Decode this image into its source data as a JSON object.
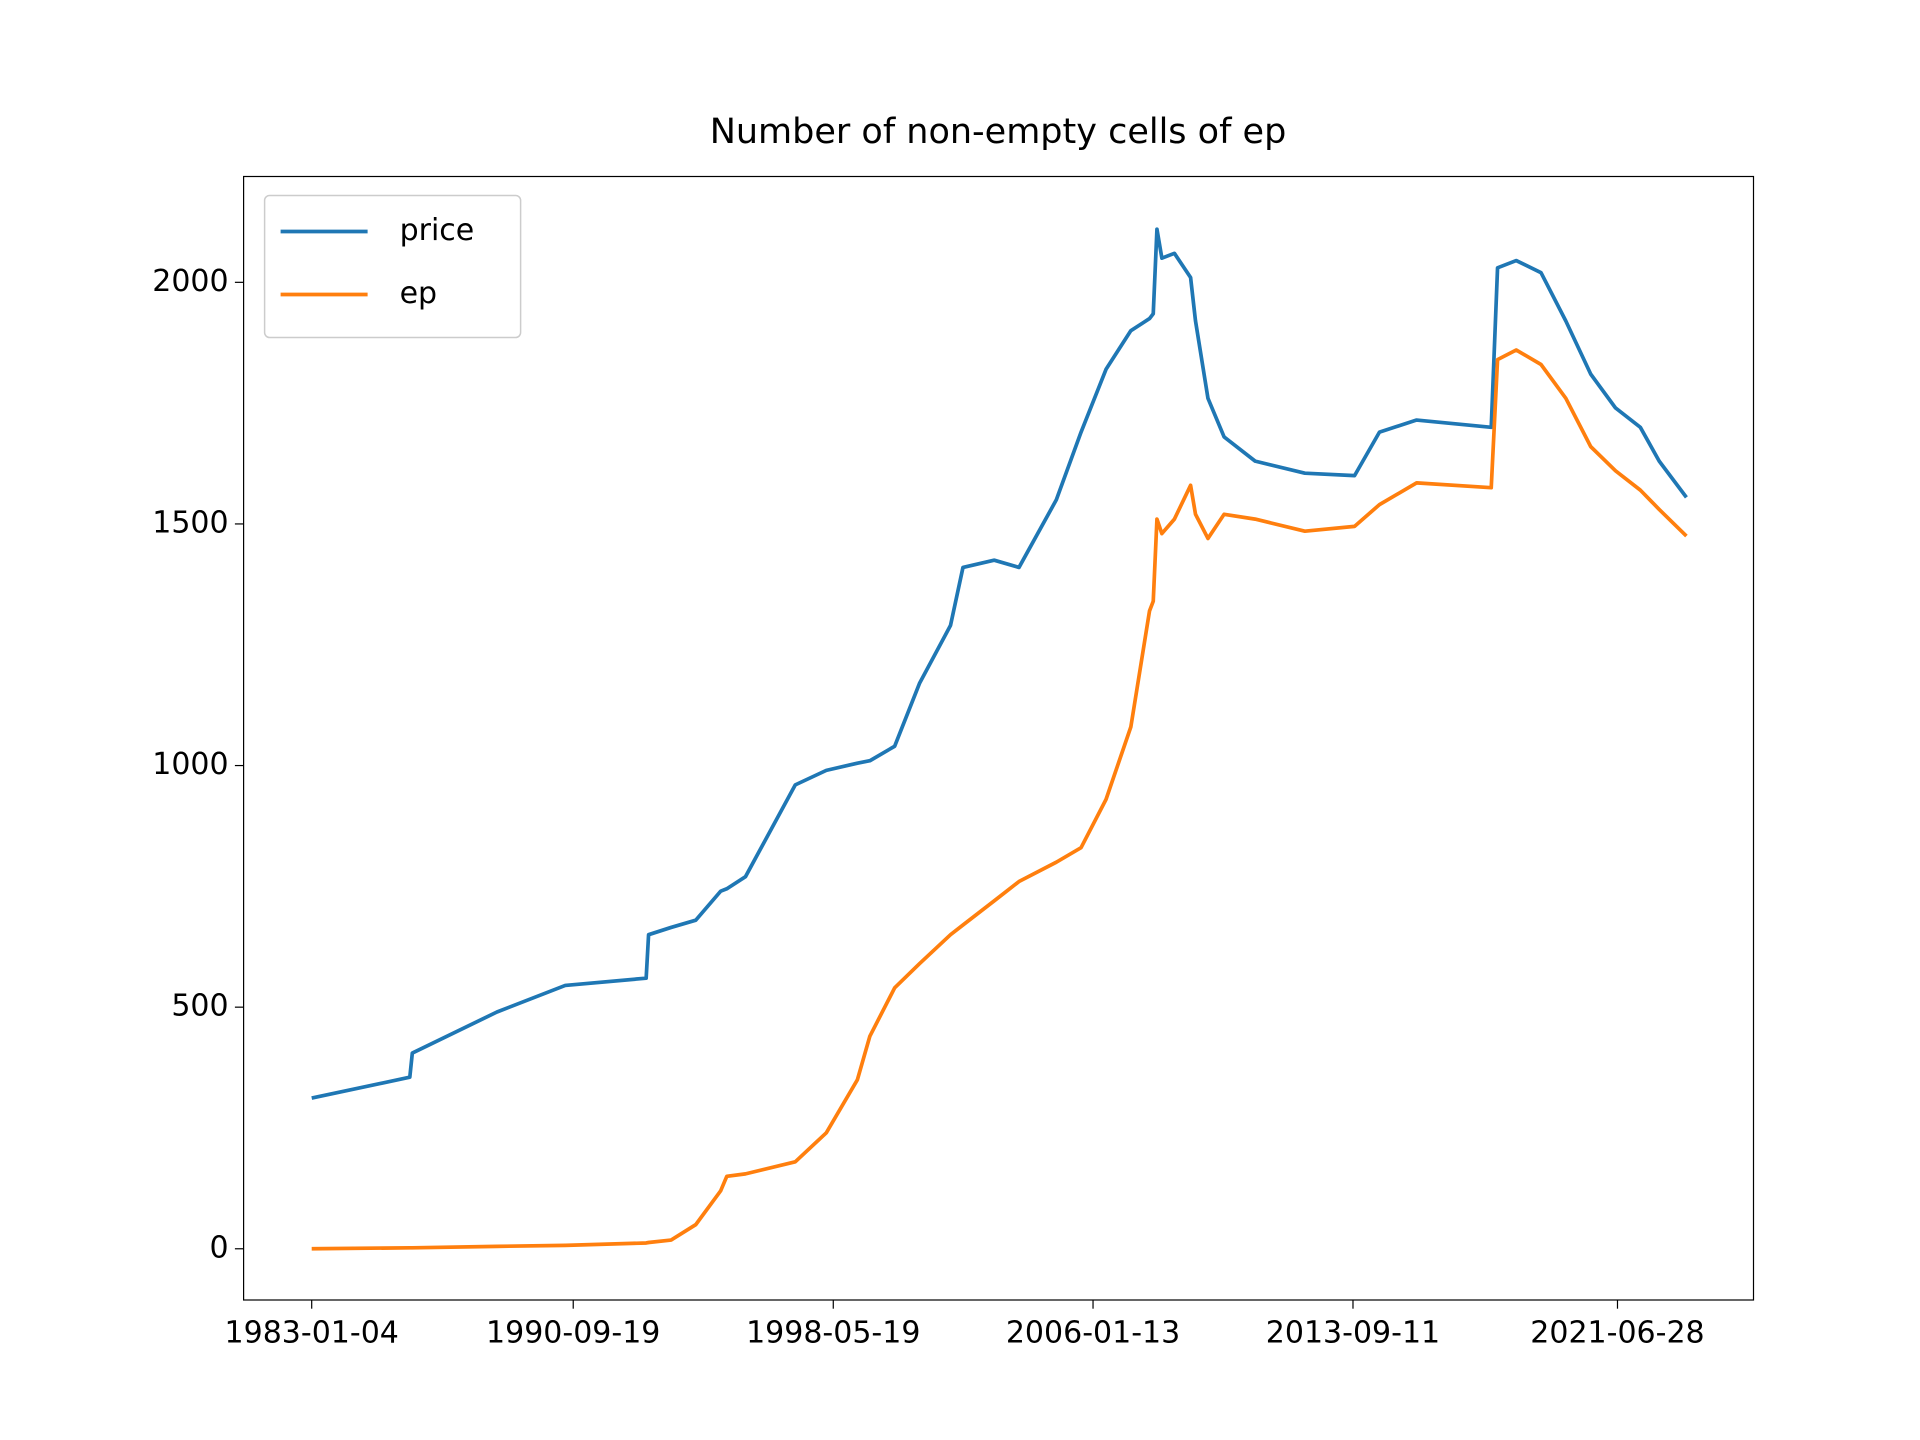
{
  "chart_data": {
    "type": "line",
    "title": "Number of non-empty cells of ep",
    "x": [
      "1983-01-04",
      "1985-11-25",
      "1985-12-22",
      "1988-06-20",
      "1990-06-25",
      "1992-11-12",
      "1992-12-08",
      "1993-08-07",
      "1994-04-30",
      "1995-01-23",
      "1995-03-30",
      "1995-10-17",
      "1997-04-05",
      "1998-03-05",
      "1999-02-03",
      "1999-06-17",
      "2000-03-10",
      "2000-12-02",
      "2001-11-01",
      "2002-03-15",
      "2003-02-14",
      "2003-11-08",
      "2004-12-14",
      "2005-09-06",
      "2006-06-02",
      "2007-02-24",
      "2007-09-13",
      "2007-10-23",
      "2007-12-02",
      "2008-01-24",
      "2008-06-07",
      "2008-11-28",
      "2009-01-20",
      "2009-06-03",
      "2009-11-24",
      "2010-10-24",
      "2012-04-11",
      "2013-09-28",
      "2014-06-23",
      "2015-07-28",
      "2017-10-08",
      "2017-12-15",
      "2018-07-04",
      "2019-03-28",
      "2019-12-20",
      "2020-09-13",
      "2021-06-07",
      "2022-03-01",
      "2022-09-20",
      "2023-07-10"
    ],
    "series": [
      {
        "name": "price",
        "color": "#1f77b4",
        "values": [
          312,
          355,
          405,
          490,
          545,
          560,
          650,
          665,
          680,
          740,
          745,
          770,
          960,
          990,
          1005,
          1010,
          1040,
          1170,
          1290,
          1410,
          1425,
          1410,
          1550,
          1690,
          1820,
          1900,
          1925,
          1935,
          2110,
          2050,
          2060,
          2010,
          1920,
          1760,
          1680,
          1630,
          1605,
          1600,
          1690,
          1715,
          1700,
          2030,
          2045,
          2020,
          1920,
          1810,
          1740,
          1700,
          1630,
          1555
        ]
      },
      {
        "name": "ep",
        "color": "#ff7f0e",
        "values": [
          0,
          2,
          2,
          5,
          7,
          12,
          13,
          18,
          50,
          120,
          150,
          155,
          180,
          240,
          350,
          440,
          540,
          590,
          650,
          670,
          720,
          760,
          800,
          830,
          930,
          1080,
          1320,
          1340,
          1510,
          1480,
          1510,
          1580,
          1520,
          1470,
          1520,
          1510,
          1485,
          1495,
          1540,
          1585,
          1575,
          1840,
          1860,
          1830,
          1760,
          1660,
          1610,
          1570,
          1530,
          1475
        ]
      }
    ],
    "xlim": [
      "1981-01-01",
      "2025-07-01"
    ],
    "xticks": [
      "1983-01-04",
      "1990-09-19",
      "1998-05-19",
      "2006-01-13",
      "2013-09-11",
      "2021-06-28"
    ],
    "ylim": [
      -106,
      2219
    ],
    "yticks": [
      0,
      500,
      1000,
      1500,
      2000
    ],
    "legend": "upper left"
  }
}
